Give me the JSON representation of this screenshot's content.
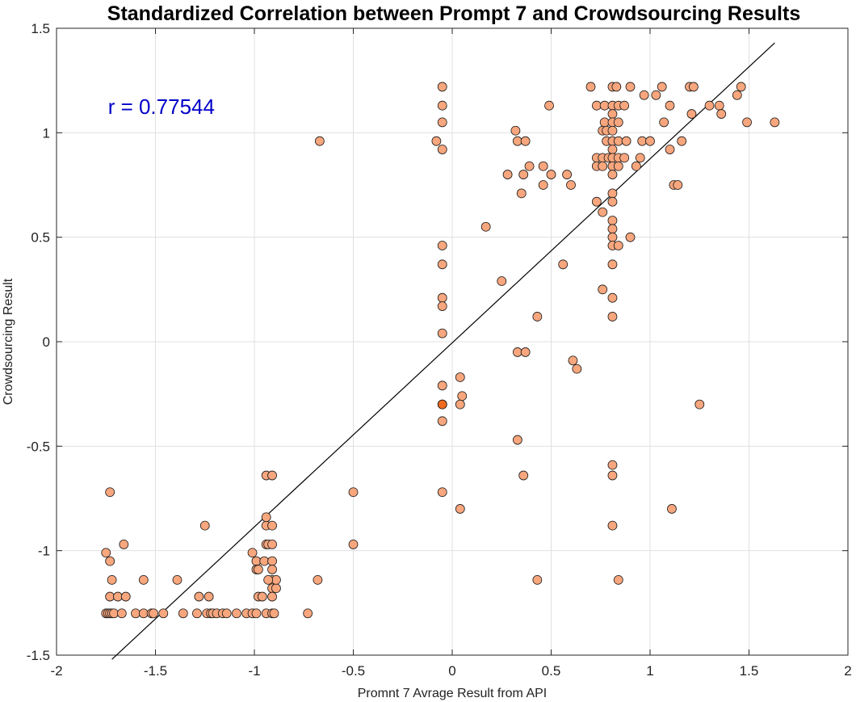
{
  "chart_data": {
    "type": "scatter",
    "title": "Standardized Correlation between Prompt 7 and Crowdsourcing Results",
    "xlabel": "Promnt 7 Avrage Result from API",
    "ylabel": "Crowdsourcing Result",
    "xlim": [
      -2,
      2
    ],
    "ylim": [
      -1.5,
      1.5
    ],
    "xticks": [
      "-2",
      "-1.5",
      "-1",
      "-0.5",
      "0",
      "0.5",
      "1",
      "1.5",
      "2"
    ],
    "yticks": [
      "-1.5",
      "-1",
      "-0.5",
      "0",
      "0.5",
      "1",
      "1.5"
    ],
    "grid": true,
    "annotation": "r = 0.77544",
    "annotation_position": {
      "x": -1.74,
      "y": 1.09
    },
    "fit_line": {
      "x": [
        -1.72,
        1.63
      ],
      "y": [
        -1.52,
        1.43
      ]
    },
    "colors": {
      "marker_fill": "#f7a67d",
      "marker_fill_overlap": "#f06a1e",
      "marker_edge": "#1a1a1a",
      "fit_line": "#000000",
      "annotation": "#0000c8",
      "grid": "#e0e0e0"
    },
    "points": [
      [
        -1.75,
        -1.3
      ],
      [
        -1.74,
        -1.3
      ],
      [
        -1.73,
        -1.3
      ],
      [
        -1.72,
        -1.3
      ],
      [
        -1.71,
        -1.3
      ],
      [
        -1.67,
        -1.3
      ],
      [
        -1.6,
        -1.3
      ],
      [
        -1.56,
        -1.3
      ],
      [
        -1.52,
        -1.3
      ],
      [
        -1.51,
        -1.3
      ],
      [
        -1.46,
        -1.3
      ],
      [
        -1.36,
        -1.3
      ],
      [
        -1.29,
        -1.3
      ],
      [
        -1.24,
        -1.3
      ],
      [
        -1.22,
        -1.3
      ],
      [
        -1.21,
        -1.3
      ],
      [
        -1.19,
        -1.3
      ],
      [
        -1.16,
        -1.3
      ],
      [
        -1.14,
        -1.3
      ],
      [
        -1.09,
        -1.3
      ],
      [
        -1.04,
        -1.3
      ],
      [
        -1.01,
        -1.3
      ],
      [
        -0.99,
        -1.3
      ],
      [
        -0.94,
        -1.3
      ],
      [
        -0.91,
        -1.3
      ],
      [
        -0.9,
        -1.3
      ],
      [
        -0.73,
        -1.3
      ],
      [
        -1.75,
        -1.01
      ],
      [
        -1.73,
        -1.05
      ],
      [
        -1.73,
        -0.72
      ],
      [
        -1.72,
        -1.14
      ],
      [
        -1.73,
        -1.22
      ],
      [
        -1.69,
        -1.22
      ],
      [
        -1.65,
        -1.22
      ],
      [
        -1.66,
        -0.97
      ],
      [
        -1.56,
        -1.14
      ],
      [
        -1.39,
        -1.14
      ],
      [
        -1.25,
        -0.88
      ],
      [
        -1.28,
        -1.22
      ],
      [
        -1.23,
        -1.22
      ],
      [
        -1.01,
        -1.01
      ],
      [
        -0.99,
        -1.05
      ],
      [
        -0.98,
        -1.22
      ],
      [
        -0.96,
        -1.22
      ],
      [
        -0.99,
        -1.09
      ],
      [
        -0.98,
        -1.09
      ],
      [
        -0.95,
        -1.05
      ],
      [
        -0.94,
        -0.88
      ],
      [
        -0.94,
        -0.97
      ],
      [
        -0.93,
        -0.97
      ],
      [
        -0.94,
        -0.84
      ],
      [
        -0.94,
        -0.64
      ],
      [
        -0.91,
        -0.64
      ],
      [
        -0.91,
        -0.88
      ],
      [
        -0.91,
        -0.97
      ],
      [
        -0.91,
        -1.05
      ],
      [
        -0.91,
        -1.09
      ],
      [
        -0.91,
        -1.14
      ],
      [
        -0.91,
        -1.18
      ],
      [
        -0.89,
        -1.18
      ],
      [
        -0.91,
        -1.22
      ],
      [
        -0.89,
        -1.14
      ],
      [
        -0.93,
        -1.14
      ],
      [
        -0.68,
        -1.14
      ],
      [
        -0.67,
        0.96
      ],
      [
        -0.5,
        -0.72
      ],
      [
        -0.5,
        -0.97
      ],
      [
        -0.05,
        1.22
      ],
      [
        -0.05,
        1.13
      ],
      [
        -0.05,
        1.05
      ],
      [
        -0.08,
        0.96
      ],
      [
        -0.05,
        0.92
      ],
      [
        -0.05,
        0.46
      ],
      [
        -0.05,
        0.37
      ],
      [
        -0.05,
        0.21
      ],
      [
        -0.05,
        0.17
      ],
      [
        -0.05,
        0.04
      ],
      [
        -0.05,
        -0.21
      ],
      [
        -0.05,
        -0.3
      ],
      [
        -0.05,
        -0.3
      ],
      [
        -0.05,
        -0.38
      ],
      [
        -0.05,
        -0.72
      ],
      [
        0.04,
        -0.17
      ],
      [
        0.04,
        -0.3
      ],
      [
        0.05,
        -0.26
      ],
      [
        0.04,
        -0.8
      ],
      [
        0.17,
        0.55
      ],
      [
        0.25,
        0.29
      ],
      [
        0.28,
        0.8
      ],
      [
        0.32,
        1.01
      ],
      [
        0.33,
        0.96
      ],
      [
        0.33,
        -0.05
      ],
      [
        0.33,
        -0.47
      ],
      [
        0.35,
        0.71
      ],
      [
        0.36,
        0.8
      ],
      [
        0.37,
        0.96
      ],
      [
        0.37,
        -0.05
      ],
      [
        0.36,
        -0.64
      ],
      [
        0.39,
        0.84
      ],
      [
        0.43,
        0.12
      ],
      [
        0.43,
        -1.14
      ],
      [
        0.46,
        0.75
      ],
      [
        0.46,
        0.84
      ],
      [
        0.49,
        1.13
      ],
      [
        0.5,
        0.8
      ],
      [
        0.56,
        0.37
      ],
      [
        0.58,
        0.8
      ],
      [
        0.6,
        0.75
      ],
      [
        0.61,
        -0.09
      ],
      [
        0.63,
        -0.13
      ],
      [
        0.7,
        1.22
      ],
      [
        0.73,
        1.13
      ],
      [
        0.73,
        0.88
      ],
      [
        0.73,
        0.84
      ],
      [
        0.73,
        0.67
      ],
      [
        0.76,
        1.01
      ],
      [
        0.77,
        1.05
      ],
      [
        0.76,
        0.88
      ],
      [
        0.76,
        0.84
      ],
      [
        0.76,
        0.62
      ],
      [
        0.76,
        0.25
      ],
      [
        0.78,
        1.01
      ],
      [
        0.77,
        1.13
      ],
      [
        0.78,
        0.96
      ],
      [
        0.79,
        0.88
      ],
      [
        0.81,
        1.22
      ],
      [
        0.81,
        1.13
      ],
      [
        0.81,
        1.09
      ],
      [
        0.81,
        1.05
      ],
      [
        0.81,
        1.01
      ],
      [
        0.81,
        0.96
      ],
      [
        0.81,
        0.92
      ],
      [
        0.81,
        0.88
      ],
      [
        0.81,
        0.84
      ],
      [
        0.81,
        0.8
      ],
      [
        0.81,
        0.71
      ],
      [
        0.81,
        0.67
      ],
      [
        0.81,
        0.58
      ],
      [
        0.81,
        0.54
      ],
      [
        0.81,
        0.5
      ],
      [
        0.81,
        0.46
      ],
      [
        0.81,
        0.37
      ],
      [
        0.81,
        0.21
      ],
      [
        0.81,
        0.12
      ],
      [
        0.81,
        -0.59
      ],
      [
        0.81,
        -0.64
      ],
      [
        0.81,
        -0.88
      ],
      [
        0.83,
        1.22
      ],
      [
        0.84,
        1.13
      ],
      [
        0.84,
        1.05
      ],
      [
        0.84,
        0.96
      ],
      [
        0.84,
        0.88
      ],
      [
        0.84,
        0.84
      ],
      [
        0.84,
        0.46
      ],
      [
        0.84,
        -1.14
      ],
      [
        0.87,
        1.13
      ],
      [
        0.87,
        0.88
      ],
      [
        0.88,
        0.96
      ],
      [
        0.9,
        1.22
      ],
      [
        0.9,
        0.5
      ],
      [
        0.93,
        0.84
      ],
      [
        0.95,
        0.88
      ],
      [
        0.96,
        0.96
      ],
      [
        0.97,
        1.18
      ],
      [
        1.0,
        0.96
      ],
      [
        1.03,
        1.18
      ],
      [
        1.06,
        1.22
      ],
      [
        1.07,
        1.05
      ],
      [
        1.1,
        1.13
      ],
      [
        1.1,
        0.92
      ],
      [
        1.11,
        -0.8
      ],
      [
        1.12,
        0.75
      ],
      [
        1.14,
        0.75
      ],
      [
        1.16,
        0.96
      ],
      [
        1.2,
        1.22
      ],
      [
        1.21,
        1.09
      ],
      [
        1.22,
        1.22
      ],
      [
        1.25,
        -0.3
      ],
      [
        1.3,
        1.13
      ],
      [
        1.35,
        1.13
      ],
      [
        1.36,
        1.09
      ],
      [
        1.44,
        1.18
      ],
      [
        1.46,
        1.22
      ],
      [
        1.49,
        1.05
      ],
      [
        1.63,
        1.05
      ]
    ]
  }
}
